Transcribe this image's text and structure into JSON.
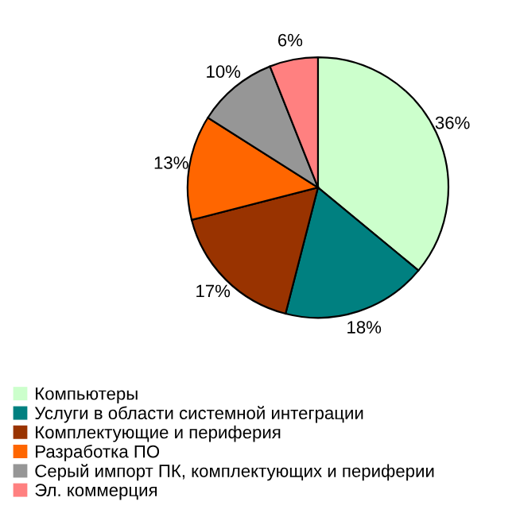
{
  "chart_data": {
    "type": "pie",
    "categories": [
      "Компьютеры",
      "Услуги в области системной интеграции",
      "Комплектующие и периферия",
      "Разработка ПО",
      "Серый импорт ПК, комплектующих и периферии",
      "Эл. коммерция"
    ],
    "values": [
      36,
      18,
      17,
      13,
      10,
      6
    ],
    "value_labels": [
      "36%",
      "18%",
      "17%",
      "13%",
      "10%",
      "6%"
    ],
    "colors": [
      "#ccffcc",
      "#008080",
      "#993300",
      "#ff6600",
      "#969696",
      "#ff8080"
    ],
    "legend": "bottom"
  }
}
